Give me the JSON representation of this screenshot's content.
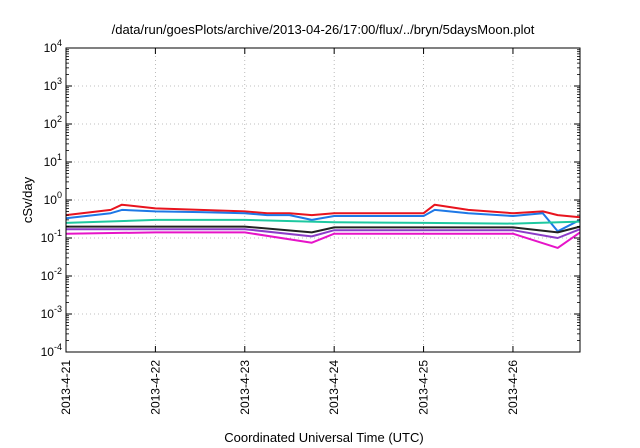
{
  "chart_data": {
    "type": "line",
    "title": "/data/run/goesPlots/archive/2013-04-26/17:00/flux/../bryn/5daysMoon.plot",
    "xlabel": "Coordinated Universal Time (UTC)",
    "ylabel": "cSv/day",
    "yscale": "log",
    "ylim": [
      0.0001,
      10000
    ],
    "xlim": [
      "2013-04-21",
      "2013-04-26 18:00"
    ],
    "grid": true,
    "y_ticks": [
      {
        "base": "10",
        "exp": "-4"
      },
      {
        "base": "10",
        "exp": "-3"
      },
      {
        "base": "10",
        "exp": "-2"
      },
      {
        "base": "10",
        "exp": "-1"
      },
      {
        "base": "10",
        "exp": "0"
      },
      {
        "base": "10",
        "exp": "1"
      },
      {
        "base": "10",
        "exp": "2"
      },
      {
        "base": "10",
        "exp": "3"
      },
      {
        "base": "10",
        "exp": "4"
      }
    ],
    "x_ticks": [
      "2013-4-21",
      "2013-4-22",
      "2013-4-23",
      "2013-4-24",
      "2013-4-25",
      "2013-4-26"
    ],
    "series": [
      {
        "color": "#e8141e",
        "x": [
          "2013-04-21 00:00",
          "2013-04-21 12:00",
          "2013-04-21 15:00",
          "2013-04-22 00:00",
          "2013-04-22 12:00",
          "2013-04-23 00:00",
          "2013-04-23 06:00",
          "2013-04-23 12:00",
          "2013-04-23 18:00",
          "2013-04-24 00:00",
          "2013-04-24 12:00",
          "2013-04-25 00:00",
          "2013-04-25 03:00",
          "2013-04-25 12:00",
          "2013-04-26 00:00",
          "2013-04-26 08:00",
          "2013-04-26 12:00",
          "2013-04-26 18:00"
        ],
        "values": [
          0.4,
          0.55,
          0.75,
          0.6,
          0.55,
          0.5,
          0.45,
          0.45,
          0.4,
          0.45,
          0.45,
          0.45,
          0.75,
          0.55,
          0.45,
          0.5,
          0.4,
          0.35
        ]
      },
      {
        "color": "#1e78e6",
        "x": [
          "2013-04-21 00:00",
          "2013-04-21 12:00",
          "2013-04-21 15:00",
          "2013-04-22 00:00",
          "2013-04-22 12:00",
          "2013-04-23 00:00",
          "2013-04-23 06:00",
          "2013-04-23 12:00",
          "2013-04-23 18:00",
          "2013-04-24 00:00",
          "2013-04-24 12:00",
          "2013-04-25 00:00",
          "2013-04-25 03:00",
          "2013-04-25 12:00",
          "2013-04-26 00:00",
          "2013-04-26 08:00",
          "2013-04-26 12:00",
          "2013-04-26 18:00"
        ],
        "values": [
          0.33,
          0.45,
          0.55,
          0.5,
          0.48,
          0.45,
          0.4,
          0.4,
          0.3,
          0.38,
          0.38,
          0.38,
          0.55,
          0.45,
          0.38,
          0.45,
          0.15,
          0.3
        ]
      },
      {
        "color": "#1ec8a0",
        "x": [
          "2013-04-21 00:00",
          "2013-04-22 00:00",
          "2013-04-23 00:00",
          "2013-04-24 00:00",
          "2013-04-25 00:00",
          "2013-04-26 00:00",
          "2013-04-26 18:00"
        ],
        "values": [
          0.25,
          0.3,
          0.3,
          0.26,
          0.25,
          0.24,
          0.27
        ]
      },
      {
        "color": "#222222",
        "x": [
          "2013-04-21 00:00",
          "2013-04-22 00:00",
          "2013-04-23 00:00",
          "2013-04-23 18:00",
          "2013-04-24 00:00",
          "2013-04-25 00:00",
          "2013-04-26 00:00",
          "2013-04-26 12:00",
          "2013-04-26 18:00"
        ],
        "values": [
          0.2,
          0.2,
          0.2,
          0.14,
          0.19,
          0.19,
          0.19,
          0.14,
          0.2
        ]
      },
      {
        "color": "#8c3cc8",
        "x": [
          "2013-04-21 00:00",
          "2013-04-22 00:00",
          "2013-04-23 00:00",
          "2013-04-23 18:00",
          "2013-04-24 00:00",
          "2013-04-25 00:00",
          "2013-04-26 00:00",
          "2013-04-26 12:00",
          "2013-04-26 18:00"
        ],
        "values": [
          0.17,
          0.17,
          0.17,
          0.11,
          0.16,
          0.16,
          0.16,
          0.1,
          0.17
        ]
      },
      {
        "color": "#e614c8",
        "x": [
          "2013-04-21 00:00",
          "2013-04-22 00:00",
          "2013-04-23 00:00",
          "2013-04-23 18:00",
          "2013-04-24 00:00",
          "2013-04-25 00:00",
          "2013-04-26 00:00",
          "2013-04-26 12:00",
          "2013-04-26 18:00"
        ],
        "values": [
          0.13,
          0.14,
          0.14,
          0.075,
          0.13,
          0.13,
          0.13,
          0.055,
          0.14
        ]
      }
    ]
  }
}
